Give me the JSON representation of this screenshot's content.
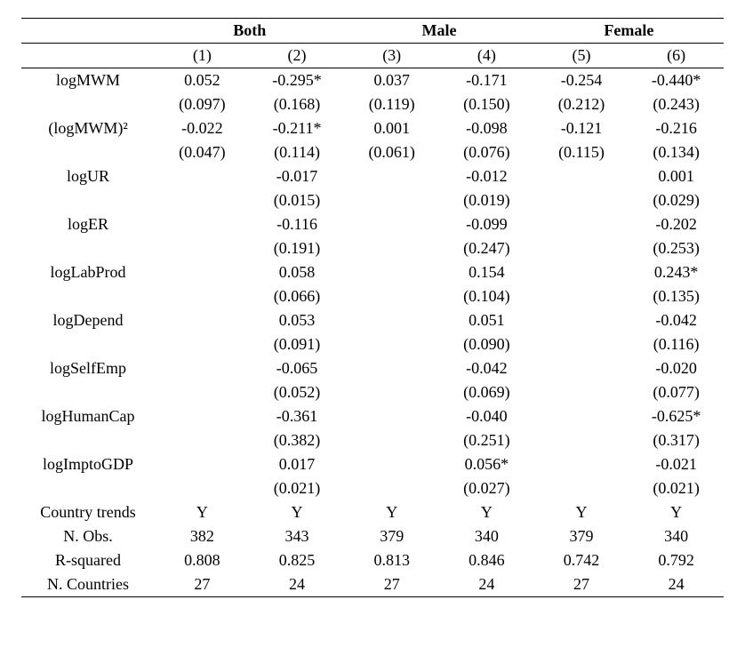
{
  "groups": [
    "Both",
    "Male",
    "Female"
  ],
  "col_labels": [
    "(1)",
    "(2)",
    "(3)",
    "(4)",
    "(5)",
    "(6)"
  ],
  "rows": [
    {
      "label": "logMWM",
      "cells": [
        "0.052",
        "-0.295*",
        "0.037",
        "-0.171",
        "-0.254",
        "-0.440*"
      ]
    },
    {
      "label": "",
      "cells": [
        "(0.097)",
        "(0.168)",
        "(0.119)",
        "(0.150)",
        "(0.212)",
        "(0.243)"
      ]
    },
    {
      "label": "(logMWM)²",
      "cells": [
        "-0.022",
        "-0.211*",
        "0.001",
        "-0.098",
        "-0.121",
        "-0.216"
      ]
    },
    {
      "label": "",
      "cells": [
        "(0.047)",
        "(0.114)",
        "(0.061)",
        "(0.076)",
        "(0.115)",
        "(0.134)"
      ]
    },
    {
      "label": "logUR",
      "cells": [
        "",
        "-0.017",
        "",
        "-0.012",
        "",
        "0.001"
      ]
    },
    {
      "label": "",
      "cells": [
        "",
        "(0.015)",
        "",
        "(0.019)",
        "",
        "(0.029)"
      ]
    },
    {
      "label": "logER",
      "cells": [
        "",
        "-0.116",
        "",
        "-0.099",
        "",
        "-0.202"
      ]
    },
    {
      "label": "",
      "cells": [
        "",
        "(0.191)",
        "",
        "(0.247)",
        "",
        "(0.253)"
      ]
    },
    {
      "label": "logLabProd",
      "cells": [
        "",
        "0.058",
        "",
        "0.154",
        "",
        "0.243*"
      ]
    },
    {
      "label": "",
      "cells": [
        "",
        "(0.066)",
        "",
        "(0.104)",
        "",
        "(0.135)"
      ]
    },
    {
      "label": "logDepend",
      "cells": [
        "",
        "0.053",
        "",
        "0.051",
        "",
        "-0.042"
      ]
    },
    {
      "label": "",
      "cells": [
        "",
        "(0.091)",
        "",
        "(0.090)",
        "",
        "(0.116)"
      ]
    },
    {
      "label": "logSelfEmp",
      "cells": [
        "",
        "-0.065",
        "",
        "-0.042",
        "",
        "-0.020"
      ]
    },
    {
      "label": "",
      "cells": [
        "",
        "(0.052)",
        "",
        "(0.069)",
        "",
        "(0.077)"
      ]
    },
    {
      "label": "logHumanCap",
      "cells": [
        "",
        "-0.361",
        "",
        "-0.040",
        "",
        "-0.625*"
      ]
    },
    {
      "label": "",
      "cells": [
        "",
        "(0.382)",
        "",
        "(0.251)",
        "",
        "(0.317)"
      ]
    },
    {
      "label": "logImptoGDP",
      "cells": [
        "",
        "0.017",
        "",
        "0.056*",
        "",
        "-0.021"
      ]
    },
    {
      "label": "",
      "cells": [
        "",
        "(0.021)",
        "",
        "(0.027)",
        "",
        "(0.021)"
      ]
    },
    {
      "label": "Country trends",
      "cells": [
        "Y",
        "Y",
        "Y",
        "Y",
        "Y",
        "Y"
      ]
    },
    {
      "label": "N. Obs.",
      "cells": [
        "382",
        "343",
        "379",
        "340",
        "379",
        "340"
      ]
    },
    {
      "label": "R-squared",
      "cells": [
        "0.808",
        "0.825",
        "0.813",
        "0.846",
        "0.742",
        "0.792"
      ]
    },
    {
      "label": "N. Countries",
      "cells": [
        "27",
        "24",
        "27",
        "24",
        "27",
        "24"
      ]
    }
  ],
  "layout": {
    "label_col_width_pct": 19,
    "data_col_width_pct": 13.5
  }
}
